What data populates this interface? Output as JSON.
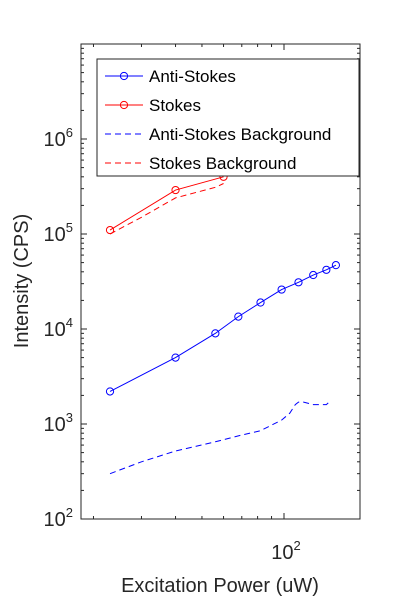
{
  "chart_data": {
    "type": "line",
    "x_scale": "log",
    "y_scale": "log",
    "xlabel": "Excitation Power (uW)",
    "ylabel": "Intensity (CPS)",
    "xlim": [
      18,
      190
    ],
    "ylim": [
      100,
      10000000
    ],
    "x_ticks": [
      {
        "value": 100,
        "base": "10",
        "exp": "2"
      }
    ],
    "y_ticks": [
      {
        "value": 100,
        "base": "10",
        "exp": "2"
      },
      {
        "value": 1000,
        "base": "10",
        "exp": "3"
      },
      {
        "value": 10000,
        "base": "10",
        "exp": "4"
      },
      {
        "value": 100000,
        "base": "10",
        "exp": "5"
      },
      {
        "value": 1000000,
        "base": "10",
        "exp": "6"
      }
    ],
    "grid": false,
    "legend_position": "top",
    "series": [
      {
        "name": "Anti-Stokes",
        "color": "#0000ff",
        "style": "solid",
        "marker": "circle",
        "x": [
          23,
          40,
          56,
          68,
          82,
          98,
          113,
          128,
          143,
          155
        ],
        "y": [
          2200,
          5000,
          9000,
          13500,
          19000,
          26000,
          31000,
          37000,
          42000,
          47000
        ]
      },
      {
        "name": "Stokes",
        "color": "#ff0000",
        "style": "solid",
        "marker": "circle",
        "x": [
          23,
          40,
          60
        ],
        "y": [
          110000,
          290000,
          400000
        ]
      },
      {
        "name": "Anti-Stokes Background",
        "color": "#0000ff",
        "style": "dashed",
        "marker": "none",
        "x": [
          23,
          30,
          40,
          56,
          68,
          82,
          98,
          105,
          110,
          113,
          118,
          128,
          135,
          143,
          148
        ],
        "y": [
          300,
          400,
          520,
          650,
          750,
          850,
          1100,
          1300,
          1600,
          1700,
          1700,
          1600,
          1600,
          1600,
          1750
        ]
      },
      {
        "name": "Stokes Background",
        "color": "#ff0000",
        "style": "dashed",
        "marker": "none",
        "x": [
          23,
          30,
          40,
          56,
          60
        ],
        "y": [
          100000,
          150000,
          240000,
          310000,
          340000
        ]
      }
    ]
  }
}
